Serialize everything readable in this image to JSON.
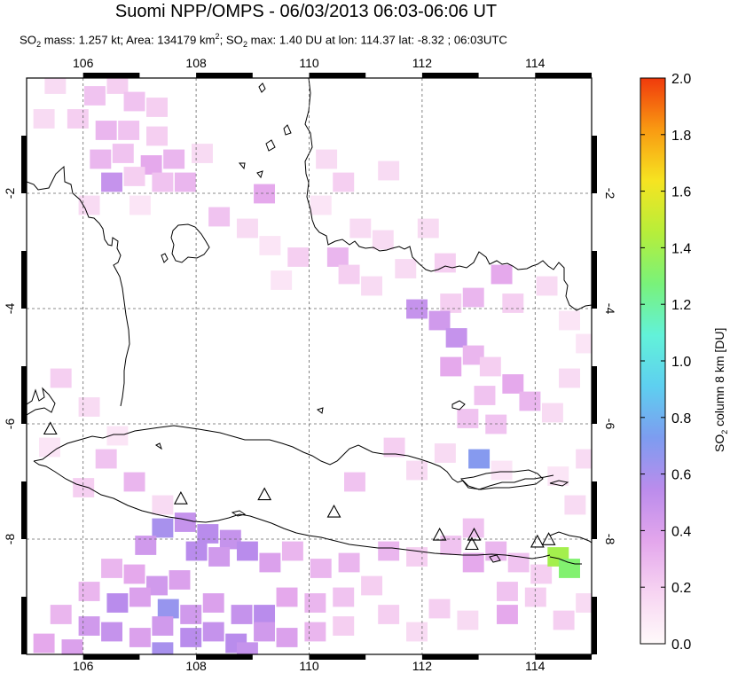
{
  "title": "Suomi NPP/OMPS - 06/03/2013 06:03-06:06 UT",
  "subtitle": {
    "p1": "SO",
    "s1": "2",
    "p2": " mass: 1.257 kt; Area: 134179 km",
    "s2": "2",
    "p3": "; SO",
    "s3": "2",
    "p4": " max: 1.40 DU at lon: 114.37 lat: -8.32 ; 06:03UTC"
  },
  "map": {
    "lon_range": [
      105.0,
      115.0
    ],
    "lat_range": [
      -10.0,
      0.0
    ],
    "lon_ticks": [
      "106",
      "108",
      "110",
      "112",
      "114"
    ],
    "lat_ticks": [
      "-2",
      "-4",
      "-6",
      "-8"
    ],
    "grid": true,
    "volcanoes": [
      {
        "lon": 105.42,
        "lat": -6.1
      },
      {
        "lon": 107.73,
        "lat": -7.31
      },
      {
        "lon": 109.21,
        "lat": -7.24
      },
      {
        "lon": 110.44,
        "lat": -7.54
      },
      {
        "lon": 112.31,
        "lat": -7.94
      },
      {
        "lon": 112.92,
        "lat": -7.94
      },
      {
        "lon": 112.88,
        "lat": -8.1
      },
      {
        "lon": 114.04,
        "lat": -8.06
      },
      {
        "lon": 114.24,
        "lat": -8.02
      }
    ]
  },
  "colorbar": {
    "ticks": [
      "2.0",
      "1.8",
      "1.6",
      "1.4",
      "1.2",
      "1.0",
      "0.8",
      "0.6",
      "0.4",
      "0.2",
      "0.0"
    ],
    "label_main": "SO",
    "label_sub": "2",
    "label_rest": " column 8 km [DU]",
    "colors": [
      "#fffafa",
      "#f7d4f2",
      "#e3a6ec",
      "#bb8cec",
      "#7d9cf0",
      "#5ecff0",
      "#62f2d9",
      "#79f27a",
      "#b7ee3a",
      "#f6e421",
      "#f99a12",
      "#f03a0c"
    ]
  },
  "chart_data": {
    "type": "heatmap",
    "variable": "SO2 column 8 km [DU]",
    "value_range": [
      0.0,
      2.0
    ],
    "max_value": 1.4,
    "max_location": {
      "lon": 114.37,
      "lat": -8.32
    },
    "cells": [
      [
        105.5,
        -0.1,
        0.15
      ],
      [
        106.2,
        -0.3,
        0.25
      ],
      [
        106.6,
        -0.1,
        0.2
      ],
      [
        106.9,
        -0.4,
        0.25
      ],
      [
        107.3,
        -0.5,
        0.2
      ],
      [
        105.3,
        -0.7,
        0.15
      ],
      [
        105.9,
        -0.7,
        0.2
      ],
      [
        106.4,
        -0.9,
        0.3
      ],
      [
        106.8,
        -0.9,
        0.25
      ],
      [
        107.3,
        -1.0,
        0.2
      ],
      [
        106.3,
        -1.4,
        0.3
      ],
      [
        106.7,
        -1.3,
        0.25
      ],
      [
        107.2,
        -1.5,
        0.35
      ],
      [
        107.6,
        -1.4,
        0.3
      ],
      [
        108.1,
        -1.3,
        0.15
      ],
      [
        106.5,
        -1.8,
        0.5
      ],
      [
        106.9,
        -1.7,
        0.2
      ],
      [
        107.4,
        -1.8,
        0.25
      ],
      [
        107.8,
        -1.8,
        0.3
      ],
      [
        106.1,
        -2.2,
        0.15
      ],
      [
        107.0,
        -2.2,
        0.1
      ],
      [
        108.4,
        -2.4,
        0.25
      ],
      [
        109.2,
        -2.0,
        0.35
      ],
      [
        108.9,
        -2.6,
        0.15
      ],
      [
        109.3,
        -2.9,
        0.1
      ],
      [
        109.8,
        -3.1,
        0.2
      ],
      [
        109.5,
        -3.5,
        0.1
      ],
      [
        110.3,
        -1.4,
        0.15
      ],
      [
        110.6,
        -1.8,
        0.2
      ],
      [
        111.4,
        -1.6,
        0.15
      ],
      [
        110.2,
        -2.2,
        0.1
      ],
      [
        110.9,
        -2.6,
        0.15
      ],
      [
        110.5,
        -3.1,
        0.3
      ],
      [
        111.3,
        -2.8,
        0.15
      ],
      [
        112.1,
        -2.6,
        0.15
      ],
      [
        110.7,
        -3.4,
        0.2
      ],
      [
        111.1,
        -3.6,
        0.15
      ],
      [
        111.7,
        -3.3,
        0.15
      ],
      [
        112.4,
        -3.2,
        0.2
      ],
      [
        112.5,
        -3.9,
        0.2
      ],
      [
        111.9,
        -4.0,
        0.5
      ],
      [
        112.3,
        -4.2,
        0.45
      ],
      [
        112.9,
        -3.8,
        0.3
      ],
      [
        113.4,
        -3.4,
        0.35
      ],
      [
        113.6,
        -3.9,
        0.2
      ],
      [
        114.2,
        -3.6,
        0.15
      ],
      [
        114.6,
        -4.2,
        0.1
      ],
      [
        112.6,
        -4.5,
        0.5
      ],
      [
        112.9,
        -4.8,
        0.3
      ],
      [
        113.2,
        -5.0,
        0.2
      ],
      [
        112.5,
        -5.0,
        0.35
      ],
      [
        113.1,
        -5.5,
        0.25
      ],
      [
        113.6,
        -5.3,
        0.35
      ],
      [
        113.9,
        -5.6,
        0.3
      ],
      [
        114.3,
        -5.8,
        0.15
      ],
      [
        112.8,
        -5.9,
        0.25
      ],
      [
        113.3,
        -6.0,
        0.25
      ],
      [
        113.0,
        -6.6,
        0.7
      ],
      [
        112.4,
        -6.5,
        0.15
      ],
      [
        111.5,
        -6.4,
        0.2
      ],
      [
        111.9,
        -6.8,
        0.15
      ],
      [
        110.8,
        -7.0,
        0.25
      ],
      [
        113.4,
        -6.8,
        0.1
      ],
      [
        105.6,
        -5.2,
        0.2
      ],
      [
        106.1,
        -5.7,
        0.15
      ],
      [
        106.6,
        -6.2,
        0.1
      ],
      [
        105.4,
        -6.4,
        0.1
      ],
      [
        106.4,
        -6.6,
        0.25
      ],
      [
        106.9,
        -7.0,
        0.3
      ],
      [
        107.4,
        -7.4,
        0.15
      ],
      [
        106.0,
        -7.1,
        0.2
      ],
      [
        107.4,
        -7.8,
        0.6
      ],
      [
        107.8,
        -7.7,
        0.5
      ],
      [
        108.2,
        -7.9,
        0.55
      ],
      [
        108.6,
        -8.0,
        0.5
      ],
      [
        107.1,
        -8.1,
        0.45
      ],
      [
        108.0,
        -8.2,
        0.55
      ],
      [
        108.4,
        -8.3,
        0.45
      ],
      [
        108.9,
        -8.2,
        0.55
      ],
      [
        109.3,
        -8.4,
        0.4
      ],
      [
        109.7,
        -8.2,
        0.3
      ],
      [
        110.2,
        -8.5,
        0.3
      ],
      [
        110.7,
        -8.4,
        0.3
      ],
      [
        106.5,
        -8.5,
        0.3
      ],
      [
        106.9,
        -8.6,
        0.35
      ],
      [
        107.3,
        -8.8,
        0.45
      ],
      [
        107.7,
        -8.7,
        0.4
      ],
      [
        106.1,
        -8.9,
        0.3
      ],
      [
        106.6,
        -9.1,
        0.55
      ],
      [
        107.0,
        -9.0,
        0.4
      ],
      [
        107.5,
        -9.2,
        0.65
      ],
      [
        107.9,
        -9.3,
        0.45
      ],
      [
        108.3,
        -9.1,
        0.4
      ],
      [
        108.8,
        -9.3,
        0.5
      ],
      [
        109.2,
        -9.3,
        0.55
      ],
      [
        109.6,
        -9.0,
        0.35
      ],
      [
        110.1,
        -9.1,
        0.3
      ],
      [
        110.6,
        -9.0,
        0.25
      ],
      [
        111.1,
        -8.8,
        0.2
      ],
      [
        105.6,
        -9.3,
        0.3
      ],
      [
        106.1,
        -9.5,
        0.45
      ],
      [
        106.5,
        -9.6,
        0.5
      ],
      [
        107.0,
        -9.7,
        0.4
      ],
      [
        107.4,
        -9.5,
        0.45
      ],
      [
        107.9,
        -9.7,
        0.55
      ],
      [
        108.3,
        -9.6,
        0.5
      ],
      [
        108.7,
        -9.8,
        0.55
      ],
      [
        109.2,
        -9.6,
        0.45
      ],
      [
        109.6,
        -9.7,
        0.4
      ],
      [
        110.1,
        -9.6,
        0.3
      ],
      [
        110.6,
        -9.5,
        0.2
      ],
      [
        105.3,
        -9.8,
        0.35
      ],
      [
        105.8,
        -9.9,
        0.4
      ],
      [
        107.4,
        -9.95,
        0.6
      ],
      [
        108.9,
        -9.95,
        0.5
      ],
      [
        111.4,
        -9.3,
        0.2
      ],
      [
        111.9,
        -9.6,
        0.15
      ],
      [
        112.3,
        -9.2,
        0.2
      ],
      [
        112.8,
        -9.4,
        0.15
      ],
      [
        111.4,
        -8.2,
        0.3
      ],
      [
        111.9,
        -8.3,
        0.2
      ],
      [
        112.5,
        -8.1,
        0.25
      ],
      [
        112.9,
        -8.4,
        0.35
      ],
      [
        113.3,
        -8.2,
        0.3
      ],
      [
        113.7,
        -8.4,
        0.25
      ],
      [
        114.1,
        -8.6,
        0.2
      ],
      [
        113.5,
        -8.9,
        0.25
      ],
      [
        114.0,
        -9.0,
        0.2
      ],
      [
        113.5,
        -9.3,
        0.35
      ],
      [
        114.5,
        -9.4,
        0.2
      ],
      [
        114.9,
        -9.1,
        0.15
      ],
      [
        112.9,
        -7.8,
        0.25
      ],
      [
        114.4,
        -8.3,
        1.4
      ],
      [
        114.6,
        -8.5,
        1.3
      ],
      [
        114.7,
        -7.4,
        0.15
      ],
      [
        114.9,
        -6.6,
        0.15
      ],
      [
        114.4,
        -6.9,
        0.1
      ],
      [
        114.6,
        -5.2,
        0.15
      ],
      [
        114.9,
        -4.6,
        0.1
      ]
    ]
  }
}
